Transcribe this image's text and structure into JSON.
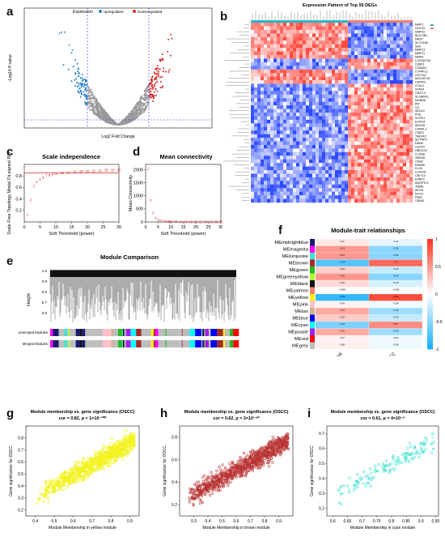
{
  "panels": {
    "a": {
      "label": "a",
      "legend_title": "Expression",
      "legend_items": [
        "Upregulated",
        "Downregulated"
      ],
      "xlabel": "Log2 Fold Change",
      "ylabel": "-Log10 P-value"
    },
    "b": {
      "label": "b",
      "title": "Expression Pattern of Top 50 DEGs"
    },
    "c": {
      "label": "c",
      "title": "Scale independence",
      "xlabel": "Soft Threshold (power)",
      "ylabel": "Scale Free Topology Model Fit,signed R^2"
    },
    "d": {
      "label": "d",
      "title": "Mean connectivity",
      "xlabel": "Soft Threshold (power)",
      "ylabel": "Mean Connectivity"
    },
    "e": {
      "label": "e",
      "title": "Module Comparison",
      "ylabel": "Height",
      "row1": "Unmerged Modules",
      "row2": "Merged Modules"
    },
    "f": {
      "label": "f",
      "title": "Module-trait relationships",
      "xcats": [
        "Normal",
        "OSCC"
      ]
    },
    "g": {
      "label": "g",
      "title": "Module membership vs. gene significance (OSCC)",
      "subtitle": "cor = 0.82, p < 1×10⁻¹⁰⁰",
      "xlabel": "Module Membership in yellow module",
      "ylabel": "Gene significance for OSCC",
      "color": "#f2f21e"
    },
    "h": {
      "label": "h",
      "title": "Module membership vs. gene significance (OSCC)",
      "subtitle": "cor = 0.62, p = 2×10⁻⁹⁰",
      "xlabel": "Module Membership in brown module",
      "ylabel": "Gene significance for OSCC",
      "color": "#b83232"
    },
    "i": {
      "label": "i",
      "title": "Module membership vs. gene significance (OSCC)",
      "subtitle": "cor = 0.61, p = 4×10⁻⁸",
      "xlabel": "Module Membership in cyan module",
      "ylabel": "Gene significance for OSCC",
      "color": "#40e0d0"
    }
  },
  "genes_b": [
    "MMP1",
    "HOXC6",
    "MMP10",
    "SULT2B1",
    "FADP",
    "SLCO1B3",
    "SAA",
    "MMP13",
    "MMP11",
    "MMP3",
    "LOC652744",
    "CA5D1",
    "CCBAK2",
    "CYP4F12",
    "UGT1A7",
    "MGC26718",
    "CRISP3",
    "CCAL1",
    "STATH",
    "CBX7L2",
    "SCGB2A1",
    "MUNNA",
    "PIP",
    "C6",
    "ADH1C",
    "PI16",
    "SCRG1",
    "ECRG4",
    "ADH1B",
    "CHRDL1",
    "CIDEC",
    "TMEFF2",
    "SLITRK5",
    "FAIM2",
    "CHST9",
    "HBGCS2",
    "CLDN8",
    "SMR3A",
    "OGA2",
    "FAM3B",
    "DLX5",
    "CLEF2R",
    "CNIY13",
    "ESRP2",
    "ANGPTL3",
    "TMMD",
    "APOD",
    "MYOC",
    "FBP2",
    "CBX82"
  ],
  "chart_data": [
    {
      "panel": "c",
      "type": "scatter",
      "title": "Scale independence",
      "xlabel": "Soft Threshold (power)",
      "ylabel": "Scale Free Topology Model Fit,signed R^2",
      "x": [
        1,
        2,
        3,
        4,
        5,
        6,
        7,
        8,
        9,
        10,
        12,
        14,
        16,
        18,
        20,
        22,
        24,
        26,
        28,
        30
      ],
      "y": [
        0.12,
        0.38,
        0.62,
        0.7,
        0.74,
        0.77,
        0.8,
        0.81,
        0.83,
        0.84,
        0.85,
        0.86,
        0.87,
        0.88,
        0.88,
        0.89,
        0.89,
        0.9,
        0.9,
        0.9
      ],
      "xlim": [
        0,
        30
      ],
      "ylim": [
        0,
        1
      ],
      "cutoff": 0.85,
      "xticks": [
        0,
        5,
        10,
        15,
        20,
        25,
        30
      ],
      "yticks": [
        0.2,
        0.4,
        0.6,
        0.8
      ]
    },
    {
      "panel": "d",
      "type": "scatter",
      "title": "Mean connectivity",
      "xlabel": "Soft Threshold (power)",
      "ylabel": "Mean Connectivity",
      "x": [
        1,
        2,
        3,
        4,
        5,
        6,
        7,
        8,
        9,
        10,
        12,
        14,
        16,
        18,
        20,
        22,
        24,
        26,
        28,
        30
      ],
      "y": [
        2050,
        820,
        340,
        160,
        85,
        50,
        32,
        22,
        16,
        12,
        8,
        6,
        4,
        3,
        2,
        2,
        1,
        1,
        1,
        1
      ],
      "xlim": [
        0,
        30
      ],
      "ylim": [
        0,
        2200
      ],
      "xticks": [
        0,
        5,
        10,
        15,
        20,
        25,
        30
      ],
      "yticks": [
        0,
        500,
        1000,
        1500,
        2000
      ]
    },
    {
      "panel": "f",
      "type": "heatmap",
      "title": "Module-trait relationships",
      "columns": [
        "Normal",
        "OSCC"
      ],
      "rows": [
        "MEmidnightblue",
        "MEmagenta",
        "MEturquoise",
        "MEbrown",
        "MEgreen",
        "MEgreenyellow",
        "MEblack",
        "MEsalmon",
        "MEyellow",
        "MEpink",
        "MEtan",
        "MEblue",
        "MEcyan",
        "MEpurple",
        "MEred",
        "MEgrey"
      ],
      "row_colors": [
        "#191970",
        "#ff00ff",
        "#40e0d0",
        "#a52a2a",
        "#22bb22",
        "#adff2f",
        "#111111",
        "#fa8072",
        "#ffee00",
        "#ffc0cb",
        "#d2b48c",
        "#0000ff",
        "#00ffff",
        "#a020f0",
        "#ff0000",
        "#bdbdbd"
      ],
      "values": [
        [
          0.11,
          -0.11
        ],
        [
          0.51,
          -0.51
        ],
        [
          0.51,
          -0.51
        ],
        [
          -0.74,
          0.74
        ],
        [
          0.24,
          -0.24
        ],
        [
          0.52,
          -0.52
        ],
        [
          0.18,
          -0.18
        ],
        [
          0.008,
          -0.008
        ],
        [
          -0.89,
          0.89
        ],
        [
          0.06,
          -0.06
        ],
        [
          0.43,
          -0.43
        ],
        [
          0.26,
          -0.26
        ],
        [
          -0.57,
          0.57
        ],
        [
          0.42,
          -0.42
        ],
        [
          0.07,
          -0.07
        ],
        [
          0.08,
          -0.08
        ]
      ],
      "scale_ticks": [
        1,
        0.5,
        0,
        -0.5,
        -1
      ]
    },
    {
      "panel": "g",
      "type": "scatter",
      "title": "Module membership vs. gene significance (OSCC)",
      "xlabel": "Module Membership in yellow module",
      "ylabel": "Gene significance for OSCC",
      "xlim": [
        0.35,
        0.95
      ],
      "ylim": [
        0.15,
        0.9
      ],
      "xticks": [
        0.4,
        0.5,
        0.6,
        0.7,
        0.8,
        0.9
      ],
      "yticks": [
        0.2,
        0.3,
        0.4,
        0.5,
        0.6,
        0.7,
        0.8
      ],
      "x": [
        0.42,
        0.45,
        0.48,
        0.5,
        0.52,
        0.55,
        0.57,
        0.6,
        0.62,
        0.65,
        0.67,
        0.7,
        0.72,
        0.75,
        0.77,
        0.8,
        0.82,
        0.85,
        0.87,
        0.9
      ],
      "y": [
        0.28,
        0.32,
        0.35,
        0.38,
        0.4,
        0.43,
        0.45,
        0.5,
        0.52,
        0.55,
        0.58,
        0.62,
        0.63,
        0.66,
        0.68,
        0.72,
        0.74,
        0.77,
        0.8,
        0.83
      ]
    },
    {
      "panel": "h",
      "type": "scatter",
      "title": "Module membership vs. gene significance (OSCC)",
      "xlabel": "Module Membership in brown module",
      "ylabel": "Gene significance for OSCC",
      "xlim": [
        0.2,
        1.0
      ],
      "ylim": [
        0.1,
        0.9
      ],
      "xticks": [
        0.3,
        0.4,
        0.5,
        0.6,
        0.7,
        0.8,
        0.9
      ],
      "yticks": [
        0.2,
        0.4,
        0.6,
        0.8
      ],
      "x": [
        0.3,
        0.35,
        0.4,
        0.45,
        0.5,
        0.55,
        0.6,
        0.65,
        0.7,
        0.75,
        0.8,
        0.85,
        0.9
      ],
      "y": [
        0.25,
        0.3,
        0.35,
        0.4,
        0.45,
        0.5,
        0.55,
        0.6,
        0.63,
        0.67,
        0.7,
        0.74,
        0.78
      ]
    },
    {
      "panel": "i",
      "type": "scatter",
      "title": "Module membership vs. gene significance (OSCC)",
      "xlabel": "Module Membership in cyan module",
      "ylabel": "Gene significance for OSCC",
      "xlim": [
        0.58,
        0.96
      ],
      "ylim": [
        0.15,
        0.75
      ],
      "xticks": [
        0.6,
        0.65,
        0.7,
        0.75,
        0.8,
        0.85,
        0.9,
        0.95
      ],
      "yticks": [
        0.2,
        0.3,
        0.4,
        0.5,
        0.6,
        0.7
      ],
      "x": [
        0.62,
        0.65,
        0.68,
        0.7,
        0.72,
        0.75,
        0.78,
        0.8,
        0.82,
        0.85,
        0.88,
        0.9,
        0.92
      ],
      "y": [
        0.32,
        0.35,
        0.38,
        0.4,
        0.42,
        0.45,
        0.48,
        0.5,
        0.52,
        0.55,
        0.6,
        0.63,
        0.66
      ]
    }
  ]
}
